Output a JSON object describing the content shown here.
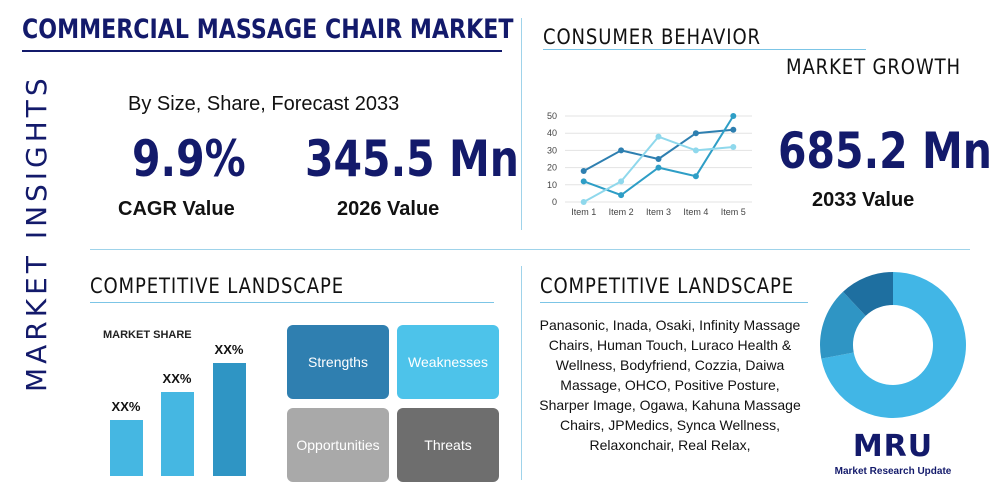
{
  "header": {
    "title": "COMMERCIAL MASSAGE CHAIR MARKET",
    "vertical_label": "MARKET INSIGHTS"
  },
  "size_panel": {
    "subtitle": "By Size, Share, Forecast 2033",
    "cagr_value": "9.9%",
    "cagr_label": "CAGR Value",
    "value_2026": "345.5 Mn",
    "value_2026_label": "2026 Value"
  },
  "consumer_panel": {
    "title": "CONSUMER BEHAVIOR",
    "subtitle": "MARKET GROWTH",
    "value_2033": "685.2 Mn",
    "value_2033_label": "2033 Value"
  },
  "chart_data": {
    "type": "line",
    "categories": [
      "Item 1",
      "Item 2",
      "Item 3",
      "Item 4",
      "Item 5"
    ],
    "y_ticks": [
      "0",
      "10",
      "20",
      "30",
      "40",
      "50"
    ],
    "ylim": [
      0,
      50
    ],
    "series": [
      {
        "values": [
          18,
          30,
          25,
          40,
          42
        ],
        "color": "#2e7fb0"
      },
      {
        "values": [
          12,
          4,
          20,
          15,
          50
        ],
        "color": "#2e9ec6"
      },
      {
        "values": [
          0,
          12,
          38,
          30,
          32
        ],
        "color": "#8fd8ec"
      }
    ]
  },
  "competitive_left": {
    "title": "COMPETITIVE LANDSCAPE",
    "market_share_label": "MARKET SHARE",
    "bars": [
      {
        "label": "XX%",
        "value": 0.36
      },
      {
        "label": "XX%",
        "value": 0.54
      },
      {
        "label": "XX%",
        "value": 0.73
      }
    ],
    "swot": {
      "strengths": "Strengths",
      "weaknesses": "Weaknesses",
      "opportunities": "Opportunities",
      "threats": "Threats"
    }
  },
  "competitive_right": {
    "title": "COMPETITIVE LANDSCAPE",
    "companies": "Panasonic, Inada, Osaki, Infinity Massage Chairs, Human Touch, Luraco Health & Wellness, Bodyfriend, Cozzia, Daiwa Massage, OHCO, Positive Posture, Sharper Image, Ogawa, Kahuna Massage Chairs, JPMedics, Synca Wellness, Relaxonchair, Real Relax,",
    "donut": [
      {
        "value": 0.72,
        "color": "#41b6e6"
      },
      {
        "value": 0.16,
        "color": "#2f95c4"
      },
      {
        "value": 0.12,
        "color": "#1e6fa0"
      }
    ]
  },
  "logo": {
    "text": "MRU",
    "caption": "Market Research Update"
  },
  "colors": {
    "navy": "#131a6b",
    "strengths": "#2f7fb0",
    "weaknesses": "#4dc3ea",
    "opportunities": "#a9a9a9",
    "threats": "#6e6e6e"
  }
}
